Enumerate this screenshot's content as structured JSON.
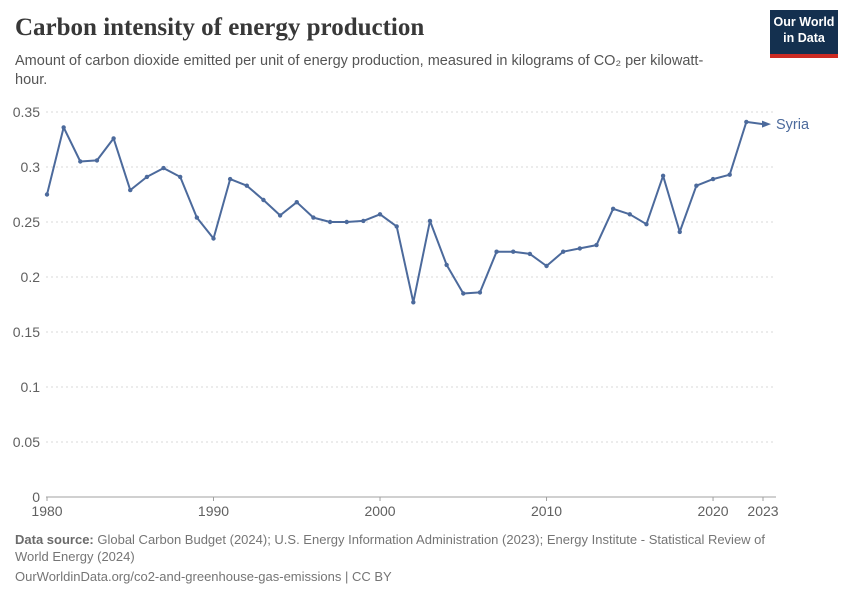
{
  "header": {
    "title": "Carbon intensity of energy production",
    "subtitle": "Amount of carbon dioxide emitted per unit of energy production, measured in kilograms of CO₂ per kilowatt-hour."
  },
  "logo": {
    "line1": "Our World",
    "line2": "in Data",
    "bg_color": "#14304f",
    "stripe_color": "#cc2a22"
  },
  "chart_data": {
    "type": "line",
    "title": "Carbon intensity of energy production",
    "ylabel": "",
    "xlabel": "",
    "ylim": [
      0,
      0.35
    ],
    "grid": true,
    "y_ticks": [
      0,
      0.05,
      0.1,
      0.15,
      0.2,
      0.25,
      0.3,
      0.35
    ],
    "y_tick_labels": [
      "0",
      "0.05",
      "0.1",
      "0.15",
      "0.2",
      "0.25",
      "0.3",
      "0.35"
    ],
    "x_ticks": [
      1980,
      1990,
      2000,
      2010,
      2020,
      2023
    ],
    "x_tick_labels": [
      "1980",
      "1990",
      "2000",
      "2010",
      "2020",
      "2023"
    ],
    "x": [
      1980,
      1981,
      1982,
      1983,
      1984,
      1985,
      1986,
      1987,
      1988,
      1989,
      1990,
      1991,
      1992,
      1993,
      1994,
      1995,
      1996,
      1997,
      1998,
      1999,
      2000,
      2001,
      2002,
      2003,
      2004,
      2005,
      2006,
      2007,
      2008,
      2009,
      2010,
      2011,
      2012,
      2013,
      2014,
      2015,
      2016,
      2017,
      2018,
      2019,
      2020,
      2021,
      2022,
      2023
    ],
    "series": [
      {
        "name": "Syria",
        "color": "#4c6a9c",
        "values": [
          0.275,
          0.336,
          0.305,
          0.306,
          0.326,
          0.279,
          0.291,
          0.299,
          0.291,
          0.254,
          0.235,
          0.289,
          0.283,
          0.27,
          0.256,
          0.268,
          0.254,
          0.25,
          0.25,
          0.251,
          0.257,
          0.246,
          0.177,
          0.251,
          0.211,
          0.185,
          0.186,
          0.223,
          0.223,
          0.221,
          0.21,
          0.223,
          0.226,
          0.229,
          0.262,
          0.257,
          0.248,
          0.292,
          0.241,
          0.283,
          0.289,
          0.293,
          0.341,
          0.339
        ]
      }
    ],
    "legend_position": "end-of-line-label",
    "end_label": "Syria",
    "colors": {
      "line": "#4c6a9c",
      "gridline": "#d9d9d9",
      "axis": "#a0a0a0",
      "tick_label": "#606060"
    }
  },
  "footer": {
    "datasource_label": "Data source:",
    "datasource_text": " Global Carbon Budget (2024); U.S. Energy Information Administration (2023); Energy Institute - Statistical Review of World Energy (2024)",
    "url_line": "OurWorldinData.org/co2-and-greenhouse-gas-emissions | CC BY"
  }
}
